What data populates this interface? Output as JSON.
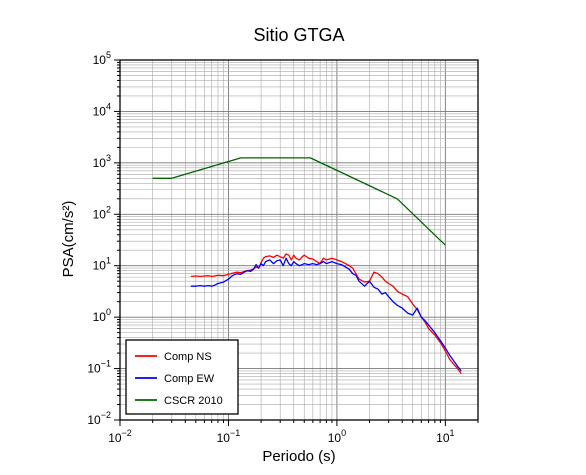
{
  "chart_data": {
    "type": "line",
    "title": "Sitio GTGA",
    "xlabel": "Periodo (s)",
    "ylabel": "PSA(cm/s²)",
    "xscale": "log",
    "yscale": "log",
    "xlim": [
      0.01,
      20
    ],
    "ylim": [
      0.01,
      100000
    ],
    "grid": true,
    "legend_position": "bottom-left",
    "x_ticks": [
      {
        "value": 0.01,
        "base": "10",
        "exp": "−2"
      },
      {
        "value": 0.1,
        "base": "10",
        "exp": "−1"
      },
      {
        "value": 1,
        "base": "10",
        "exp": "0"
      },
      {
        "value": 10,
        "base": "10",
        "exp": "1"
      }
    ],
    "y_ticks": [
      {
        "value": 0.01,
        "base": "10",
        "exp": "−2"
      },
      {
        "value": 0.1,
        "base": "10",
        "exp": "−1"
      },
      {
        "value": 1,
        "base": "10",
        "exp": "0"
      },
      {
        "value": 10,
        "base": "10",
        "exp": "1"
      },
      {
        "value": 100,
        "base": "10",
        "exp": "2"
      },
      {
        "value": 1000,
        "base": "10",
        "exp": "3"
      },
      {
        "value": 10000,
        "base": "10",
        "exp": "4"
      },
      {
        "value": 100000,
        "base": "10",
        "exp": "5"
      }
    ],
    "series": [
      {
        "name": "Comp NS",
        "color": "#ff0000",
        "x": [
          0.045,
          0.05,
          0.055,
          0.06,
          0.065,
          0.07,
          0.075,
          0.08,
          0.09,
          0.1,
          0.11,
          0.12,
          0.13,
          0.14,
          0.15,
          0.16,
          0.17,
          0.18,
          0.19,
          0.2,
          0.21,
          0.22,
          0.24,
          0.26,
          0.28,
          0.3,
          0.32,
          0.34,
          0.36,
          0.38,
          0.4,
          0.42,
          0.45,
          0.48,
          0.5,
          0.55,
          0.6,
          0.65,
          0.7,
          0.75,
          0.8,
          0.9,
          1.0,
          1.1,
          1.2,
          1.3,
          1.4,
          1.5,
          1.6,
          1.8,
          2.0,
          2.2,
          2.4,
          2.6,
          2.8,
          3.0,
          3.3,
          3.6,
          4.0,
          4.5,
          5.0,
          5.5,
          6.0,
          6.5,
          7.0,
          8.0,
          9.0,
          10.0,
          11.0,
          12.0,
          13.0,
          14.0
        ],
        "y": [
          6.2,
          6.3,
          6.2,
          6.3,
          6.4,
          6.2,
          6.3,
          6.5,
          6.4,
          6.8,
          7.2,
          7.5,
          7.3,
          7.8,
          8.0,
          8.2,
          8.6,
          9.5,
          9.0,
          11.5,
          14.0,
          15.0,
          15.5,
          14.5,
          16.0,
          15.0,
          14.0,
          17.0,
          16.0,
          13.0,
          16.0,
          14.0,
          13.0,
          15.0,
          16.0,
          14.0,
          13.5,
          12.0,
          11.0,
          14.0,
          13.0,
          14.0,
          13.0,
          12.0,
          11.0,
          10.0,
          9.0,
          7.0,
          5.5,
          4.8,
          5.0,
          7.5,
          7.0,
          6.0,
          5.0,
          4.5,
          4.0,
          3.2,
          2.8,
          2.5,
          1.8,
          1.4,
          1.0,
          0.8,
          0.6,
          0.45,
          0.32,
          0.22,
          0.15,
          0.12,
          0.1,
          0.08
        ]
      },
      {
        "name": "Comp EW",
        "color": "#0000ff",
        "x": [
          0.045,
          0.05,
          0.055,
          0.06,
          0.065,
          0.07,
          0.075,
          0.08,
          0.09,
          0.1,
          0.11,
          0.12,
          0.13,
          0.14,
          0.15,
          0.16,
          0.17,
          0.18,
          0.19,
          0.2,
          0.21,
          0.22,
          0.24,
          0.26,
          0.28,
          0.3,
          0.32,
          0.34,
          0.36,
          0.38,
          0.4,
          0.42,
          0.45,
          0.48,
          0.5,
          0.55,
          0.6,
          0.65,
          0.7,
          0.75,
          0.8,
          0.9,
          1.0,
          1.1,
          1.2,
          1.3,
          1.4,
          1.5,
          1.6,
          1.8,
          2.0,
          2.2,
          2.4,
          2.6,
          2.8,
          3.0,
          3.3,
          3.6,
          4.0,
          4.5,
          5.0,
          5.5,
          6.0,
          6.5,
          7.0,
          8.0,
          9.0,
          10.0,
          11.0,
          12.0,
          13.0,
          14.0
        ],
        "y": [
          4.0,
          4.0,
          4.1,
          4.0,
          4.1,
          4.0,
          4.2,
          4.5,
          4.8,
          5.5,
          6.5,
          7.0,
          6.8,
          7.5,
          8.0,
          7.8,
          8.5,
          10.5,
          9.0,
          11.0,
          10.0,
          12.0,
          13.0,
          11.0,
          12.5,
          13.0,
          10.0,
          14.0,
          11.0,
          10.0,
          12.0,
          11.0,
          10.0,
          10.5,
          11.0,
          10.5,
          11.0,
          10.5,
          11.0,
          12.0,
          11.0,
          12.0,
          11.0,
          10.5,
          9.5,
          8.5,
          7.0,
          6.5,
          5.0,
          4.0,
          5.0,
          3.8,
          3.5,
          2.8,
          3.0,
          2.5,
          2.0,
          1.7,
          1.5,
          1.2,
          1.1,
          1.5,
          1.0,
          0.85,
          0.7,
          0.5,
          0.35,
          0.25,
          0.18,
          0.14,
          0.11,
          0.09
        ]
      },
      {
        "name": "CSCR 2010",
        "color": "#006400",
        "x": [
          0.02,
          0.03,
          0.13,
          0.57,
          3.6,
          10.0
        ],
        "y": [
          500,
          500,
          1250,
          1250,
          200,
          25
        ]
      }
    ]
  }
}
